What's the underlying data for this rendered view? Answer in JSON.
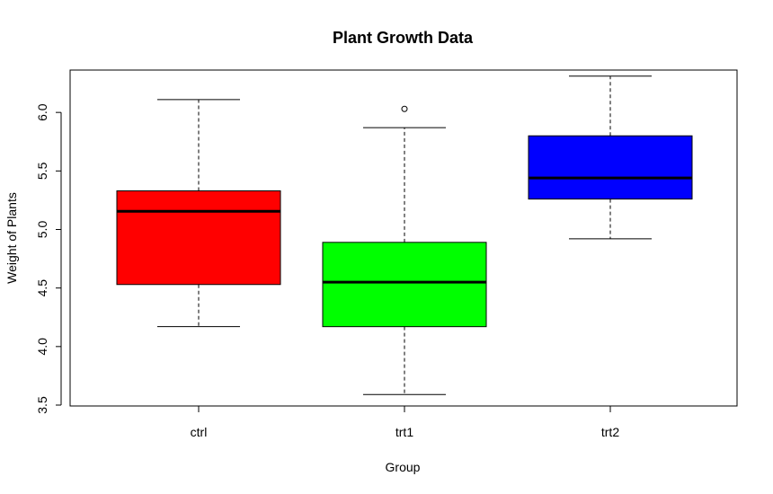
{
  "chart_data": {
    "type": "boxplot",
    "title": "Plant Growth Data",
    "xlabel": "Group",
    "ylabel": "Weight of Plants",
    "ylim": [
      3.5,
      6.3
    ],
    "y_ticks": [
      "3.5",
      "4.0",
      "4.5",
      "5.0",
      "5.5",
      "6.0"
    ],
    "grid": false,
    "legend": "none",
    "categories": [
      "ctrl",
      "trt1",
      "trt2"
    ],
    "boxes": [
      {
        "category": "ctrl",
        "min": 4.17,
        "q1": 4.53,
        "median": 5.155,
        "q3": 5.33,
        "max": 6.11,
        "outliers": [],
        "color": "#ff0000"
      },
      {
        "category": "trt1",
        "min": 3.59,
        "q1": 4.17,
        "median": 4.55,
        "q3": 4.89,
        "max": 5.87,
        "outliers": [
          6.03
        ],
        "color": "#00ff00"
      },
      {
        "category": "trt2",
        "min": 4.92,
        "q1": 5.26,
        "median": 5.44,
        "q3": 5.8,
        "max": 6.31,
        "outliers": [],
        "color": "#0000ff"
      }
    ]
  }
}
